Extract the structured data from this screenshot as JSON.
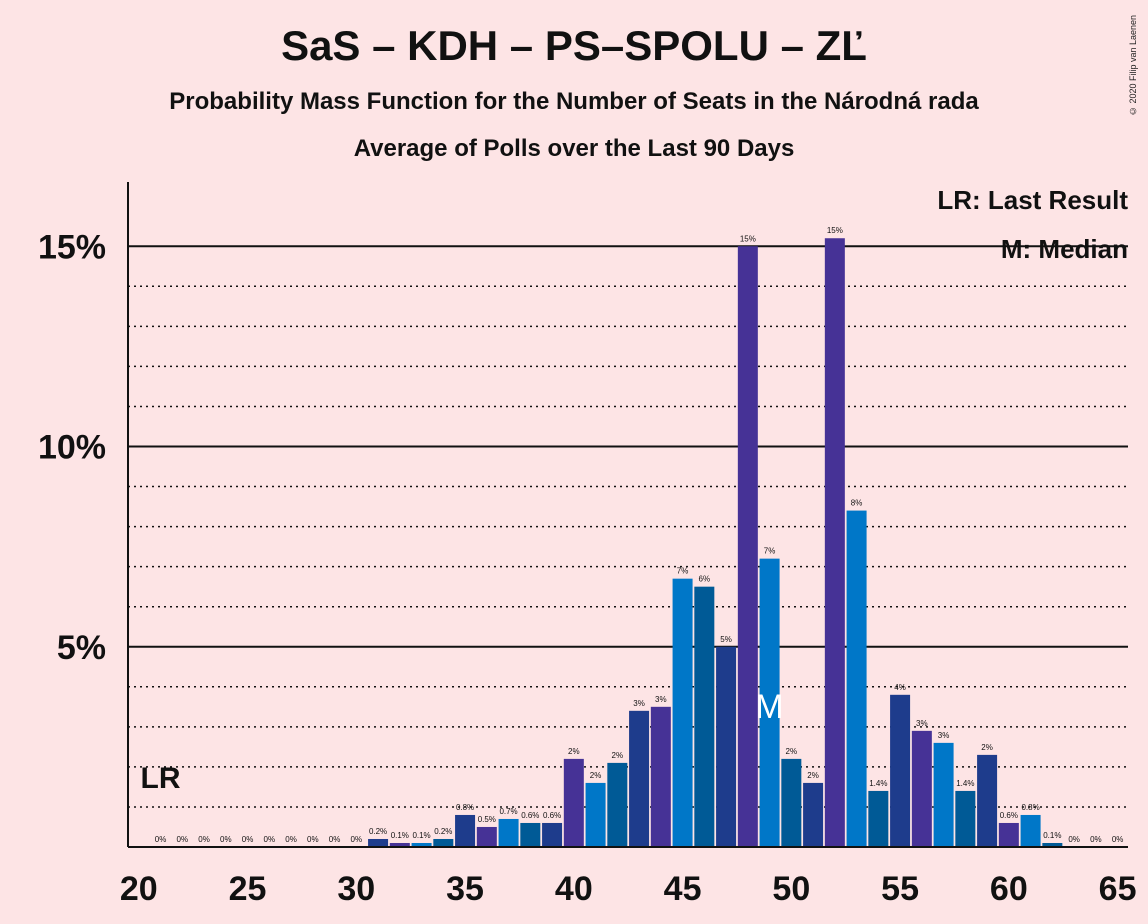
{
  "header": {
    "title": "SaS – KDH – PS–SPOLU – ZĽ",
    "subtitle": "Probability Mass Function for the Number of Seats in the Národná rada",
    "subtitle2": "Average of Polls over the Last 90 Days",
    "copyright": "© 2020 Filip van Laenen"
  },
  "legend": {
    "last_result": "LR: Last Result",
    "median": "M: Median"
  },
  "markers": {
    "last_result_label": "LR",
    "last_result_seat": 21,
    "median_label": "M",
    "median_seat": 49
  },
  "colors": {
    "background": "#FDE4E5",
    "series": [
      "#0077C8",
      "#005A96",
      "#1E3C8C",
      "#463296"
    ]
  },
  "chart_data": {
    "type": "bar",
    "title": "SaS – KDH – PS–SPOLU – ZĽ",
    "xlabel": "",
    "ylabel": "",
    "xlim": [
      20,
      65
    ],
    "ylim": [
      0,
      16.5
    ],
    "x_ticks": [
      20,
      25,
      30,
      35,
      40,
      45,
      50,
      55,
      60,
      65
    ],
    "y_ticks": [
      {
        "value": 5,
        "label": "5%"
      },
      {
        "value": 10,
        "label": "10%"
      },
      {
        "value": 15,
        "label": "15%"
      }
    ],
    "grid": true,
    "legend_position": "top-right",
    "x": [
      21,
      22,
      23,
      24,
      25,
      26,
      27,
      28,
      29,
      30,
      31,
      32,
      33,
      34,
      35,
      36,
      37,
      38,
      39,
      40,
      41,
      42,
      43,
      44,
      45,
      46,
      47,
      48,
      49,
      50,
      51,
      52,
      53,
      54,
      55,
      56,
      57,
      58,
      59,
      60,
      61,
      62,
      63,
      64,
      65
    ],
    "values": [
      0,
      0,
      0,
      0,
      0,
      0,
      0,
      0,
      0,
      0,
      0.2,
      0.1,
      0.1,
      0.2,
      0.8,
      0.5,
      0.7,
      0.6,
      0.6,
      2.2,
      1.6,
      2.1,
      3.4,
      3.5,
      6.7,
      6.5,
      5.0,
      15.0,
      7.2,
      2.2,
      1.6,
      15.2,
      8.4,
      1.4,
      3.8,
      2.9,
      2.6,
      1.4,
      2.3,
      0.6,
      0.8,
      0.1,
      0,
      0,
      0
    ],
    "labels": [
      "0%",
      "0%",
      "0%",
      "0%",
      "0%",
      "0%",
      "0%",
      "0%",
      "0%",
      "0%",
      "0.2%",
      "0.1%",
      "0.1%",
      "0.2%",
      "0.8%",
      "0.5%",
      "0.7%",
      "0.6%",
      "0.6%",
      "2%",
      "2%",
      "2%",
      "3%",
      "3%",
      "7%",
      "6%",
      "5%",
      "15%",
      "7%",
      "2%",
      "2%",
      "15%",
      "8%",
      "1.4%",
      "4%",
      "3%",
      "3%",
      "1.4%",
      "2%",
      "0.6%",
      "0.8%",
      "0.1%",
      "0%",
      "0%",
      "0%"
    ]
  }
}
